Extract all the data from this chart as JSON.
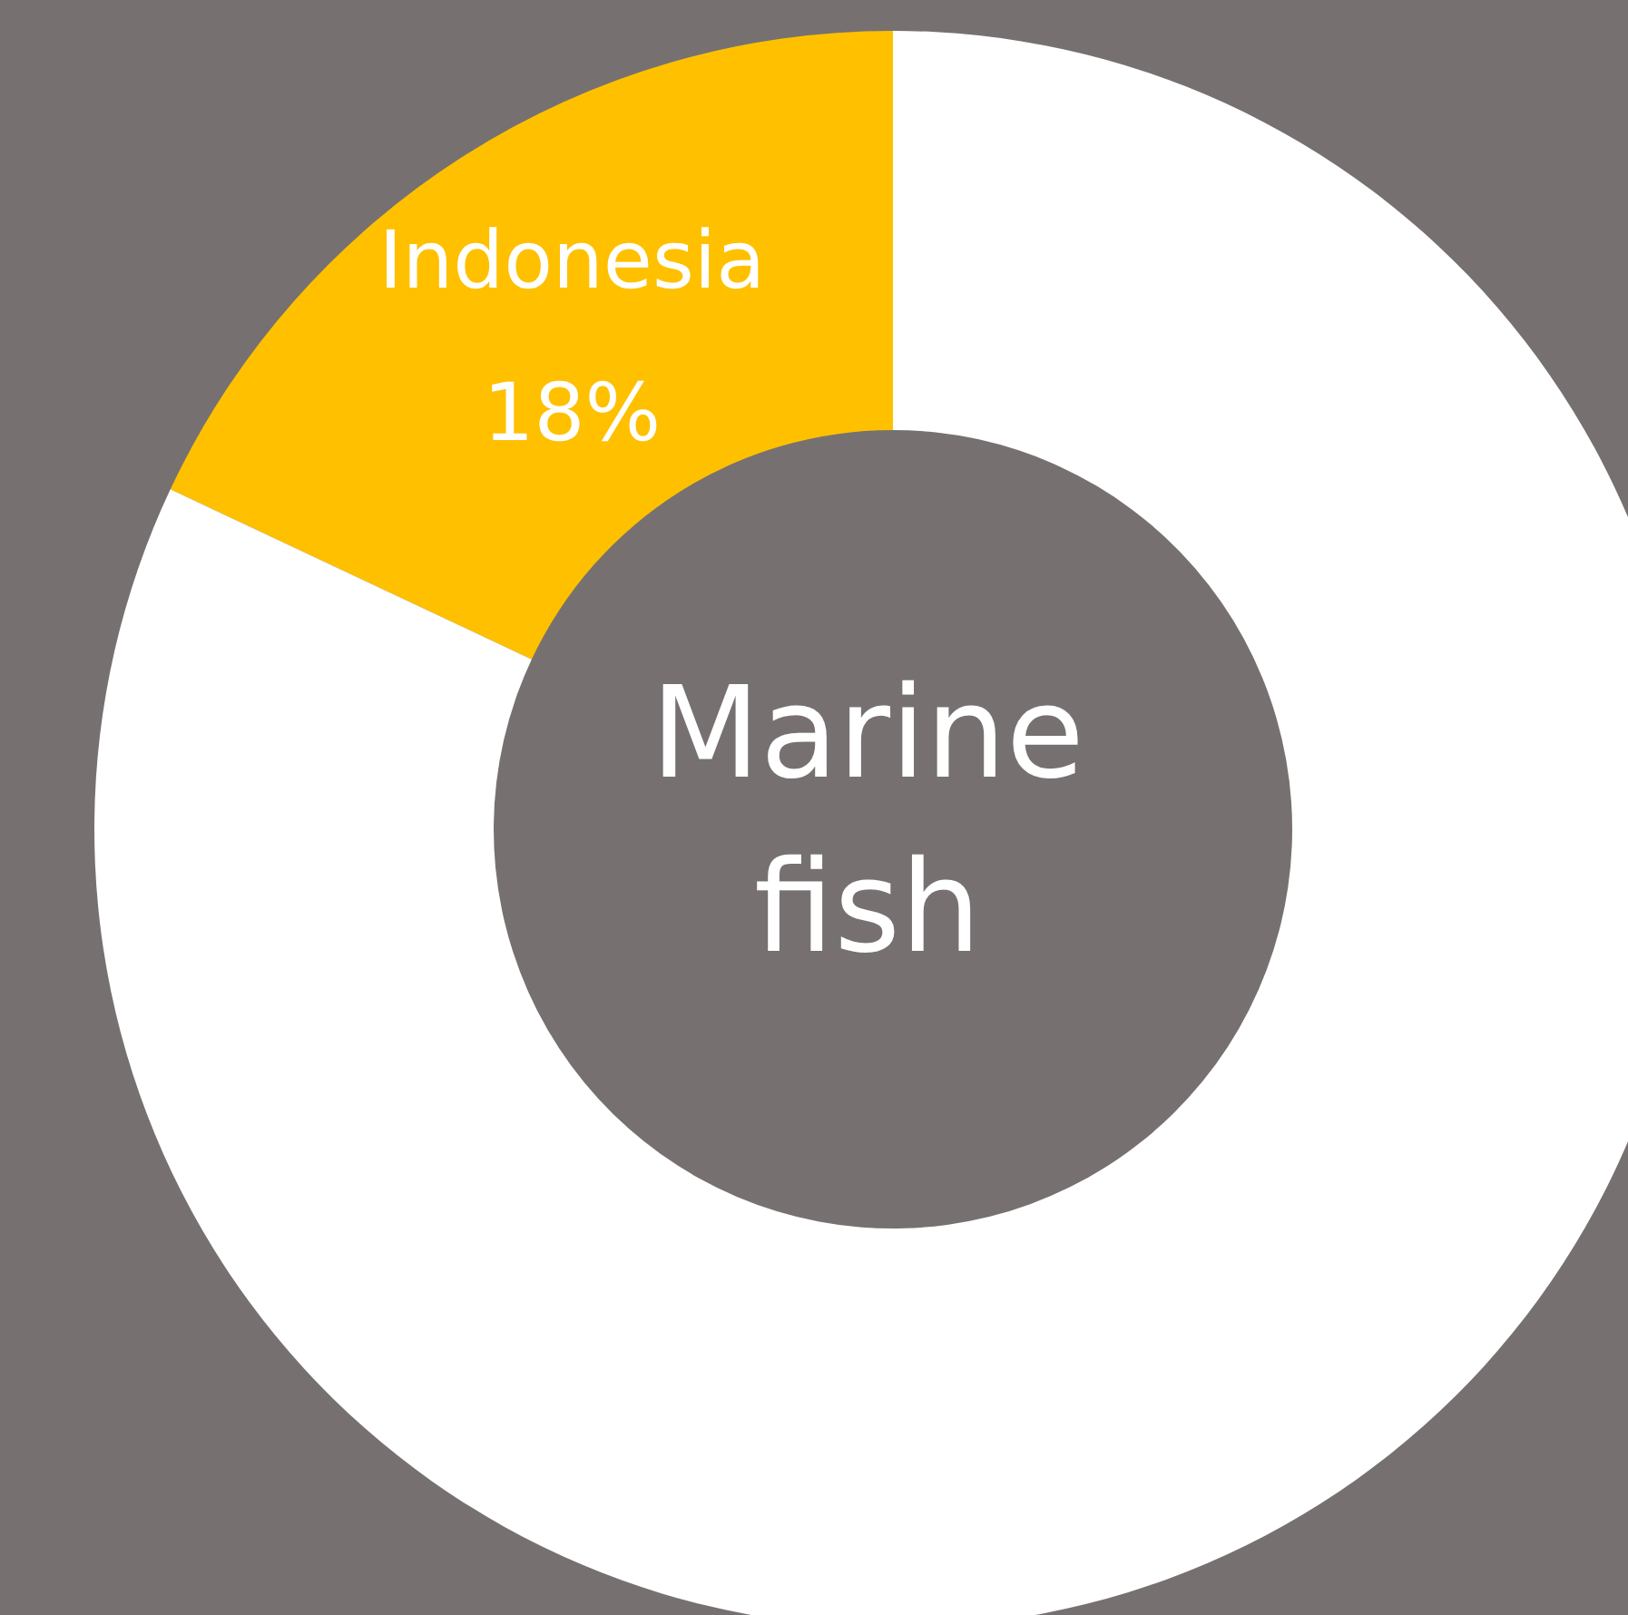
{
  "chart_data": {
    "type": "donut",
    "title": "Marine fish",
    "categories": [
      "Indonesia",
      null
    ],
    "values": [
      18,
      82
    ],
    "colors": [
      "#ffc000",
      "#ffffff"
    ],
    "value_labels": [
      "18%",
      null
    ]
  }
}
